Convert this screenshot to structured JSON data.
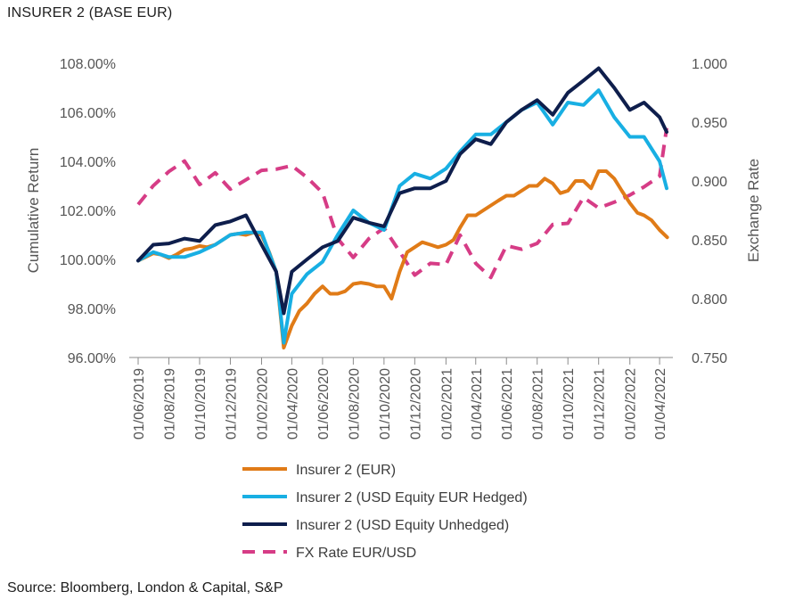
{
  "title": "INSURER 2 (BASE EUR)",
  "source": "Source: Bloomberg, London & Capital, S&P",
  "chart_data": {
    "type": "line",
    "title": "INSURER 2 (BASE EUR)",
    "x_tick_labels": [
      "01/06/2019",
      "01/08/2019",
      "01/10/2019",
      "01/12/2019",
      "01/02/2020",
      "01/04/2020",
      "01/06/2020",
      "01/08/2020",
      "01/10/2020",
      "01/12/2020",
      "01/02/2021",
      "01/04/2021",
      "01/06/2021",
      "01/08/2021",
      "01/10/2021",
      "01/12/2021",
      "01/02/2022",
      "01/04/2022"
    ],
    "x_range": [
      "01/06/2019",
      "15/04/2022"
    ],
    "ylabel_left": "Cumulative Return",
    "ylabel_right": "Exchange Rate",
    "y_left_ticks": [
      "96.00%",
      "98.00%",
      "100.00%",
      "102.00%",
      "104.00%",
      "106.00%",
      "108.00%"
    ],
    "y_left_range": [
      96,
      108
    ],
    "y_right_ticks": [
      "0.750",
      "0.800",
      "0.850",
      "0.900",
      "0.950",
      "1.000"
    ],
    "y_right_range": [
      0.75,
      1.0
    ],
    "legend_position": "bottom",
    "grid": false,
    "series": [
      {
        "name": "Insurer 2 (EUR)",
        "axis": "left",
        "color": "#E07B17",
        "dash": false,
        "x": [
          "2019-06-01",
          "2019-06-16",
          "2019-07-01",
          "2019-07-16",
          "2019-08-01",
          "2019-08-16",
          "2019-09-01",
          "2019-09-16",
          "2019-10-01",
          "2019-10-16",
          "2019-11-01",
          "2019-11-16",
          "2019-12-01",
          "2019-12-16",
          "2020-01-01",
          "2020-01-16",
          "2020-02-01",
          "2020-02-16",
          "2020-03-01",
          "2020-03-16",
          "2020-04-01",
          "2020-04-16",
          "2020-05-01",
          "2020-05-16",
          "2020-06-01",
          "2020-06-16",
          "2020-07-01",
          "2020-07-16",
          "2020-08-01",
          "2020-08-16",
          "2020-09-01",
          "2020-09-16",
          "2020-10-01",
          "2020-10-16",
          "2020-11-01",
          "2020-11-16",
          "2020-12-01",
          "2020-12-16",
          "2021-01-01",
          "2021-01-16",
          "2021-02-01",
          "2021-02-16",
          "2021-03-01",
          "2021-03-16",
          "2021-04-01",
          "2021-04-16",
          "2021-05-01",
          "2021-05-16",
          "2021-06-01",
          "2021-06-16",
          "2021-07-01",
          "2021-07-16",
          "2021-08-01",
          "2021-08-16",
          "2021-09-01",
          "2021-09-16",
          "2021-10-01",
          "2021-10-16",
          "2021-11-01",
          "2021-11-16",
          "2021-12-01",
          "2021-12-16",
          "2022-01-01",
          "2022-01-16",
          "2022-02-01",
          "2022-02-16",
          "2022-03-01",
          "2022-03-16",
          "2022-04-01",
          "2022-04-16"
        ],
        "values": [
          99.95,
          100.1,
          100.25,
          100.2,
          100.05,
          100.2,
          100.4,
          100.45,
          100.55,
          100.5,
          100.6,
          100.8,
          101.0,
          101.05,
          101.0,
          101.1,
          101.0,
          100.3,
          99.5,
          96.4,
          97.3,
          97.9,
          98.2,
          98.6,
          98.9,
          98.6,
          98.6,
          98.7,
          99.0,
          99.05,
          99.0,
          98.9,
          98.9,
          98.4,
          99.5,
          100.3,
          100.5,
          100.7,
          100.6,
          100.5,
          100.6,
          100.8,
          101.3,
          101.8,
          101.8,
          102.0,
          102.2,
          102.4,
          102.6,
          102.6,
          102.8,
          103.0,
          103.0,
          103.3,
          103.1,
          102.7,
          102.8,
          103.2,
          103.2,
          102.9,
          103.6,
          103.6,
          103.3,
          102.8,
          102.3,
          101.9,
          101.8,
          101.6,
          101.2,
          100.9
        ]
      },
      {
        "name": "Insurer 2 (USD Equity EUR Hedged)",
        "axis": "left",
        "color": "#18AFE3",
        "dash": false,
        "x": [
          "2019-06-01",
          "2019-07-01",
          "2019-08-01",
          "2019-09-01",
          "2019-10-01",
          "2019-11-01",
          "2019-12-01",
          "2020-01-01",
          "2020-02-01",
          "2020-03-01",
          "2020-03-16",
          "2020-04-01",
          "2020-05-01",
          "2020-06-01",
          "2020-07-01",
          "2020-08-01",
          "2020-09-01",
          "2020-10-01",
          "2020-11-01",
          "2020-12-01",
          "2021-01-01",
          "2021-02-01",
          "2021-03-01",
          "2021-04-01",
          "2021-05-01",
          "2021-06-01",
          "2021-07-01",
          "2021-08-01",
          "2021-09-01",
          "2021-10-01",
          "2021-11-01",
          "2021-12-01",
          "2022-01-01",
          "2022-02-01",
          "2022-03-01",
          "2022-04-01",
          "2022-04-15"
        ],
        "values": [
          99.95,
          100.3,
          100.1,
          100.1,
          100.3,
          100.6,
          101.0,
          101.1,
          101.1,
          99.5,
          96.6,
          98.6,
          99.4,
          99.9,
          101.0,
          102.0,
          101.5,
          101.2,
          103.0,
          103.5,
          103.3,
          103.7,
          104.4,
          105.1,
          105.1,
          105.6,
          106.1,
          106.4,
          105.5,
          106.4,
          106.3,
          106.9,
          105.8,
          105.0,
          105.0,
          104.0,
          102.9
        ]
      },
      {
        "name": "Insurer 2 (USD Equity Unhedged)",
        "axis": "left",
        "color": "#0E1E4C",
        "dash": false,
        "x": [
          "2019-06-01",
          "2019-07-01",
          "2019-08-01",
          "2019-09-01",
          "2019-10-01",
          "2019-11-01",
          "2019-12-01",
          "2020-01-01",
          "2020-02-01",
          "2020-03-01",
          "2020-03-16",
          "2020-04-01",
          "2020-05-01",
          "2020-06-01",
          "2020-07-01",
          "2020-08-01",
          "2020-09-01",
          "2020-10-01",
          "2020-11-01",
          "2020-12-01",
          "2021-01-01",
          "2021-02-01",
          "2021-03-01",
          "2021-04-01",
          "2021-05-01",
          "2021-06-01",
          "2021-07-01",
          "2021-08-01",
          "2021-09-01",
          "2021-10-01",
          "2021-11-01",
          "2021-12-01",
          "2022-01-01",
          "2022-02-01",
          "2022-03-01",
          "2022-04-01",
          "2022-04-15"
        ],
        "values": [
          99.95,
          100.6,
          100.65,
          100.85,
          100.75,
          101.4,
          101.55,
          101.8,
          100.6,
          99.5,
          97.8,
          99.5,
          100.0,
          100.5,
          100.75,
          101.7,
          101.5,
          101.35,
          102.7,
          102.9,
          102.9,
          103.2,
          104.3,
          104.9,
          104.7,
          105.6,
          106.1,
          106.5,
          105.9,
          106.8,
          107.3,
          107.8,
          107.0,
          106.1,
          106.4,
          105.8,
          105.2
        ]
      },
      {
        "name": "FX Rate EUR/USD",
        "axis": "right",
        "color": "#D63C86",
        "dash": true,
        "x": [
          "2019-06-01",
          "2019-07-01",
          "2019-08-01",
          "2019-09-01",
          "2019-10-01",
          "2019-11-01",
          "2019-12-01",
          "2020-01-01",
          "2020-02-01",
          "2020-03-01",
          "2020-04-01",
          "2020-05-01",
          "2020-06-01",
          "2020-07-01",
          "2020-08-01",
          "2020-09-01",
          "2020-10-01",
          "2020-11-01",
          "2020-12-01",
          "2021-01-01",
          "2021-02-01",
          "2021-03-01",
          "2021-04-01",
          "2021-05-01",
          "2021-06-01",
          "2021-07-01",
          "2021-08-01",
          "2021-09-01",
          "2021-10-01",
          "2021-11-01",
          "2021-12-01",
          "2022-01-01",
          "2022-02-01",
          "2022-03-01",
          "2022-04-01",
          "2022-04-15"
        ],
        "values": [
          0.88,
          0.896,
          0.908,
          0.917,
          0.897,
          0.907,
          0.893,
          0.901,
          0.909,
          0.91,
          0.913,
          0.903,
          0.89,
          0.851,
          0.835,
          0.851,
          0.86,
          0.84,
          0.82,
          0.83,
          0.829,
          0.854,
          0.83,
          0.818,
          0.845,
          0.842,
          0.847,
          0.863,
          0.864,
          0.886,
          0.877,
          0.882,
          0.888,
          0.895,
          0.904,
          0.945
        ]
      }
    ]
  }
}
